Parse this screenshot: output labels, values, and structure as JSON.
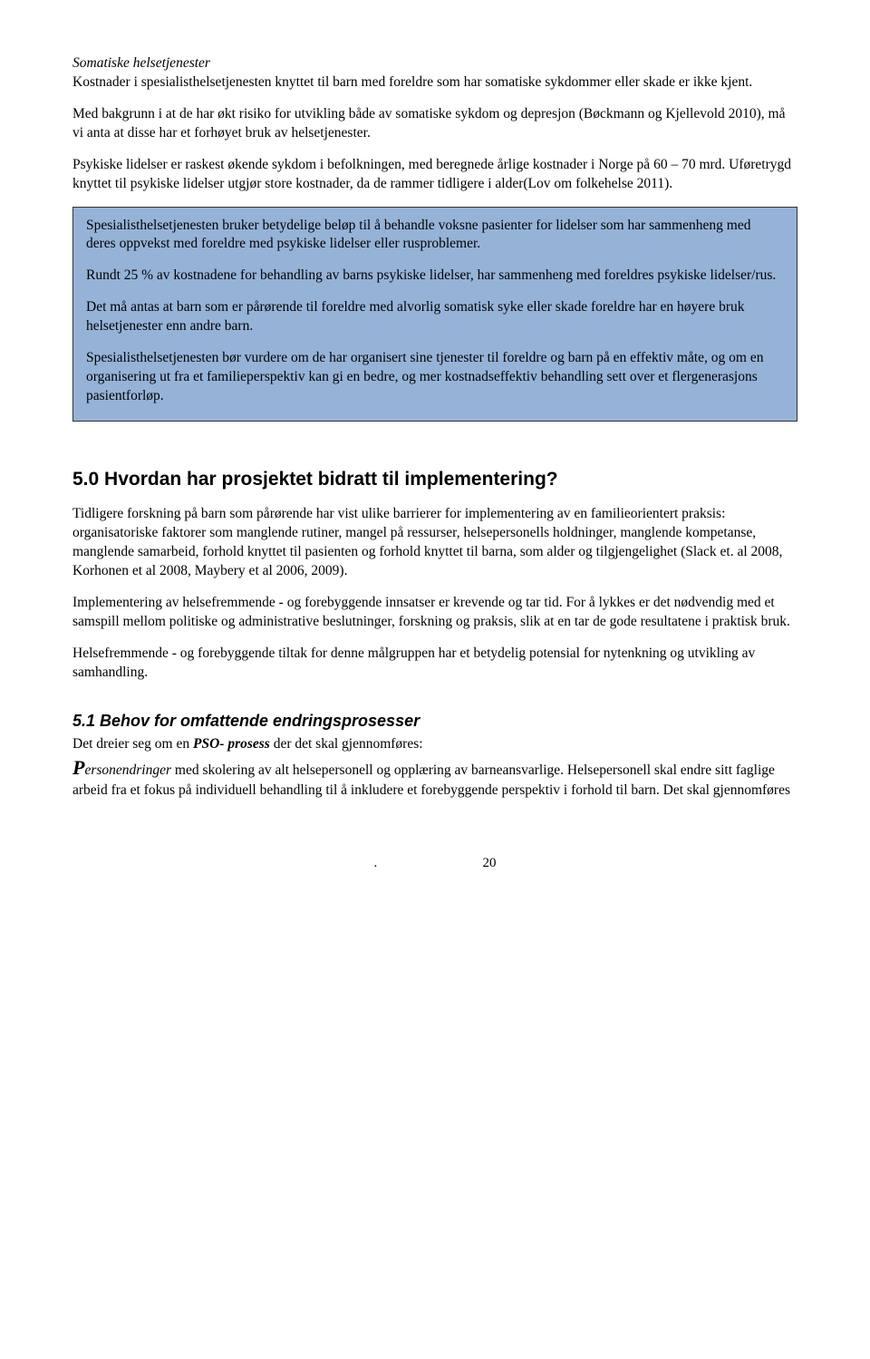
{
  "section_italic_heading": "Somatiske helsetjenester",
  "p1": "Kostnader i spesialisthelsetjenesten knyttet til barn med foreldre som har somatiske sykdommer eller skade er ikke kjent.",
  "p2": "Med bakgrunn i at de har økt risiko for utvikling både av somatiske sykdom og depresjon (Bøckmann og Kjellevold 2010), må vi anta at disse har et forhøyet bruk av helsetjenester.",
  "p3": "Psykiske lidelser er raskest økende sykdom i befolkningen, med beregnede årlige kostnader i Norge på 60 – 70 mrd. Uføretrygd knyttet til psykiske lidelser utgjør store kostnader, da de rammer tidligere i alder(Lov om folkehelse 2011).",
  "callout": {
    "c1": "Spesialisthelsetjenesten bruker betydelige beløp til å behandle voksne pasienter for lidelser som har sammenheng med deres oppvekst med foreldre med psykiske lidelser eller rusproblemer.",
    "c2": "Rundt 25 % av kostnadene for behandling av barns psykiske lidelser, har sammenheng med foreldres psykiske lidelser/rus.",
    "c3": "Det må antas at barn som er pårørende til foreldre med alvorlig somatisk syke eller skade foreldre har en høyere bruk helsetjenester enn andre barn.",
    "c4": "Spesialisthelsetjenesten bør vurdere om de har organisert sine tjenester til foreldre og barn på en effektiv måte, og om en organisering ut fra et familieperspektiv kan gi en bedre, og mer kostnadseffektiv behandling sett over et flergenerasjons pasientforløp."
  },
  "h2": "5.0   Hvordan har prosjektet bidratt til implementering?",
  "p5": "Tidligere forskning på barn som pårørende har vist ulike barrierer for implementering av en familieorientert praksis: organisatoriske faktorer som manglende rutiner, mangel på ressurser, helsepersonells holdninger, manglende kompetanse, manglende samarbeid, forhold knyttet til pasienten og forhold knyttet til barna, som alder og tilgjengelighet (Slack et. al 2008, Korhonen et al 2008, Maybery et al 2006, 2009).",
  "p6": "Implementering av helsefremmende - og forebyggende innsatser er krevende og tar tid. For å lykkes er det nødvendig med et samspill mellom politiske og administrative beslutninger, forskning og praksis, slik at en tar de gode resultatene i praktisk bruk.",
  "p7": "Helsefremmende - og forebyggende tiltak for denne målgruppen har et betydelig potensial for nytenkning og utvikling av samhandling.",
  "h3": "5.1    Behov for omfattende endringsprosesser",
  "p8_pre": "Det dreier seg om en ",
  "p8_bold": "PSO- prosess",
  "p8_post": " der det skal gjennomføres:",
  "p9_initial": "P",
  "p9_rest": "ersonendringer",
  "p9_after": " med skolering av alt helsepersonell og opplæring av barneansvarlige. Helsepersonell skal endre sitt faglige arbeid fra et fokus på individuell behandling til å inkludere et forebyggende perspektiv i forhold til barn. Det skal gjennomføres",
  "footer": {
    "dot": ".",
    "num": "20"
  }
}
